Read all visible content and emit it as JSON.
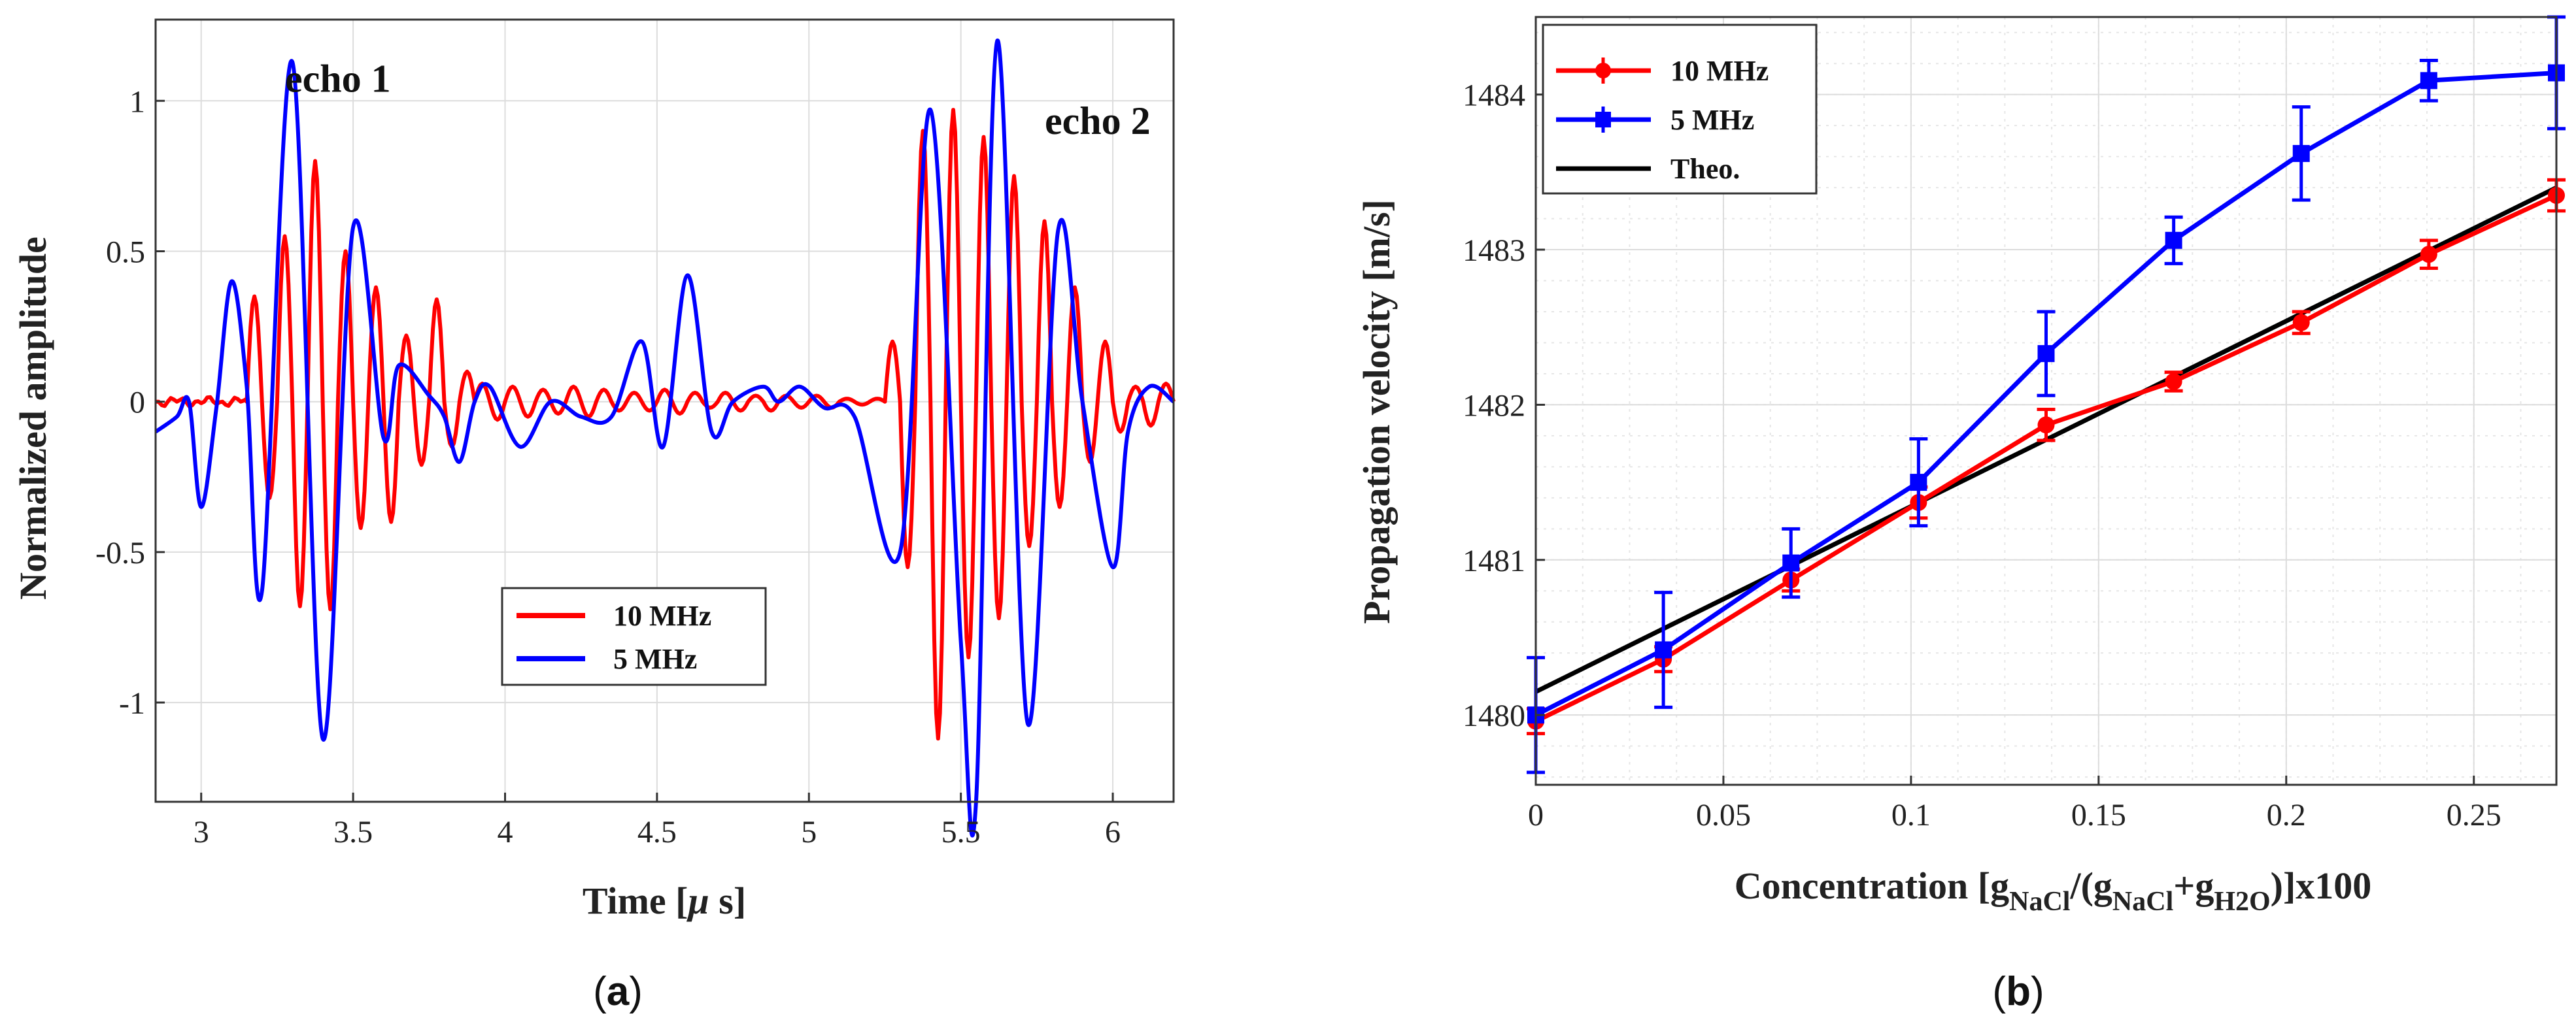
{
  "chart_data": [
    {
      "id": "a",
      "type": "line",
      "caption": "(a)",
      "xlabel": "Time [μ s]",
      "ylabel": "Normalized amplitude",
      "xlim": [
        2.85,
        6.2
      ],
      "ylim": [
        -1.33,
        1.27
      ],
      "xticks": [
        3,
        3.5,
        4,
        4.5,
        5,
        5.5,
        6
      ],
      "xtick_labels": [
        "3",
        "3.5",
        "4",
        "4.5",
        "5",
        "5.5",
        "6"
      ],
      "yticks": [
        -1,
        -0.5,
        0,
        0.5,
        1
      ],
      "ytick_labels": [
        "-1",
        "-0.5",
        "0",
        "0.5",
        "1"
      ],
      "grid": true,
      "legend_position": "lower-center",
      "annotations": [
        {
          "text": "echo 1",
          "x": 3.45,
          "y": 1.03
        },
        {
          "text": "echo 2",
          "x": 5.95,
          "y": 0.89
        }
      ],
      "series": [
        {
          "name": "10 MHz",
          "color": "#ff0000",
          "segments": [
            {
              "kind": "noise",
              "t0": 2.85,
              "t1": 3.15,
              "amp": 0.015
            },
            {
              "kind": "burst",
              "t0": 3.15,
              "t1": 3.9,
              "freq": 10,
              "extrema": [
                0.35,
                -0.32,
                0.55,
                -0.68,
                0.8,
                -0.69,
                0.5,
                -0.42,
                0.38,
                -0.4,
                0.22,
                -0.21,
                0.34,
                -0.15,
                0.1
              ]
            },
            {
              "kind": "burst",
              "t0": 3.9,
              "t1": 5.25,
              "freq": 10,
              "extrema": [
                0.06,
                -0.06,
                0.05,
                -0.05,
                0.04,
                -0.04,
                0.05,
                -0.05,
                0.04,
                -0.03,
                0.03,
                -0.03,
                0.04,
                -0.04,
                0.03,
                -0.02,
                0.03,
                -0.03,
                0.02,
                -0.03,
                0.02,
                -0.02,
                0.02,
                -0.02,
                0.01,
                -0.01,
                0.01
              ]
            },
            {
              "kind": "burst",
              "t0": 5.25,
              "t1": 6.2,
              "freq": 10,
              "extrema": [
                0.2,
                -0.55,
                0.9,
                -1.12,
                0.97,
                -0.85,
                0.88,
                -0.72,
                0.75,
                -0.48,
                0.6,
                -0.35,
                0.38,
                -0.2,
                0.2,
                -0.1,
                0.05,
                -0.08,
                0.06
              ]
            }
          ]
        },
        {
          "name": "5 MHz",
          "color": "#0000ff",
          "points": [
            [
              2.85,
              -0.1
            ],
            [
              2.92,
              -0.05
            ],
            [
              2.96,
              0.0
            ],
            [
              3.0,
              -0.35
            ],
            [
              3.05,
              -0.02
            ],
            [
              3.1,
              0.4
            ],
            [
              3.15,
              0.05
            ],
            [
              3.2,
              -0.63
            ],
            [
              3.3,
              1.13
            ],
            [
              3.4,
              -1.12
            ],
            [
              3.5,
              0.58
            ],
            [
              3.6,
              -0.12
            ],
            [
              3.65,
              0.12
            ],
            [
              3.75,
              0.02
            ],
            [
              3.8,
              -0.05
            ],
            [
              3.85,
              -0.2
            ],
            [
              3.9,
              0.0
            ],
            [
              3.95,
              0.05
            ],
            [
              4.05,
              -0.15
            ],
            [
              4.15,
              0.0
            ],
            [
              4.25,
              -0.05
            ],
            [
              4.35,
              -0.05
            ],
            [
              4.45,
              0.2
            ],
            [
              4.52,
              -0.15
            ],
            [
              4.6,
              0.42
            ],
            [
              4.68,
              -0.1
            ],
            [
              4.75,
              0.0
            ],
            [
              4.85,
              0.05
            ],
            [
              4.9,
              0.0
            ],
            [
              4.97,
              0.05
            ],
            [
              5.05,
              -0.02
            ],
            [
              5.15,
              -0.05
            ],
            [
              5.3,
              -0.5
            ],
            [
              5.4,
              0.97
            ],
            [
              5.5,
              -0.8
            ],
            [
              5.55,
              -1.33
            ],
            [
              5.62,
              1.2
            ],
            [
              5.72,
              -1.07
            ],
            [
              5.82,
              0.57
            ],
            [
              5.9,
              0.0
            ],
            [
              6.0,
              -0.55
            ],
            [
              6.05,
              -0.1
            ],
            [
              6.12,
              0.05
            ],
            [
              6.2,
              0.0
            ]
          ]
        }
      ]
    },
    {
      "id": "b",
      "type": "line",
      "caption": "(b)",
      "xlabel": "Concentration [g",
      "xlabel_parts": [
        "Concentration [g",
        "NaCl",
        "/(g",
        "NaCl",
        "+g",
        "H2O",
        ")]x100"
      ],
      "ylabel": "Propagation velocity [m/s]",
      "xlim": [
        0,
        0.272
      ],
      "ylim": [
        1479.55,
        1484.5
      ],
      "xticks": [
        0,
        0.05,
        0.1,
        0.15,
        0.2,
        0.25
      ],
      "xtick_labels": [
        "0",
        "0.05",
        "0.1",
        "0.15",
        "0.2",
        "0.25"
      ],
      "yticks": [
        1480,
        1481,
        1482,
        1483,
        1484
      ],
      "ytick_labels": [
        "1480",
        "1481",
        "1482",
        "1483",
        "1484"
      ],
      "grid": true,
      "minor_grid": true,
      "legend_position": "top-left",
      "series": [
        {
          "name": "10 MHz",
          "color": "#ff0000",
          "marker": "circle",
          "x": [
            0,
            0.034,
            0.068,
            0.102,
            0.136,
            0.17,
            0.204,
            0.238,
            0.272
          ],
          "y": [
            1479.96,
            1480.36,
            1480.87,
            1481.37,
            1481.87,
            1482.15,
            1482.53,
            1482.97,
            1483.35
          ],
          "err": [
            0.08,
            0.08,
            0.07,
            0.1,
            0.1,
            0.06,
            0.07,
            0.09,
            0.1
          ]
        },
        {
          "name": "5 MHz",
          "color": "#0000ff",
          "marker": "square",
          "x": [
            0,
            0.034,
            0.068,
            0.102,
            0.136,
            0.17,
            0.204,
            0.238,
            0.272
          ],
          "y": [
            1480.0,
            1480.42,
            1480.98,
            1481.5,
            1482.33,
            1483.06,
            1483.62,
            1484.09,
            1484.14
          ],
          "err": [
            0.37,
            0.37,
            0.22,
            0.28,
            0.27,
            0.15,
            0.3,
            0.13,
            0.36
          ]
        },
        {
          "name": "Theo.",
          "color": "#000000",
          "marker": "none",
          "x": [
            0,
            0.272
          ],
          "y": [
            1480.15,
            1483.4
          ]
        }
      ]
    }
  ]
}
